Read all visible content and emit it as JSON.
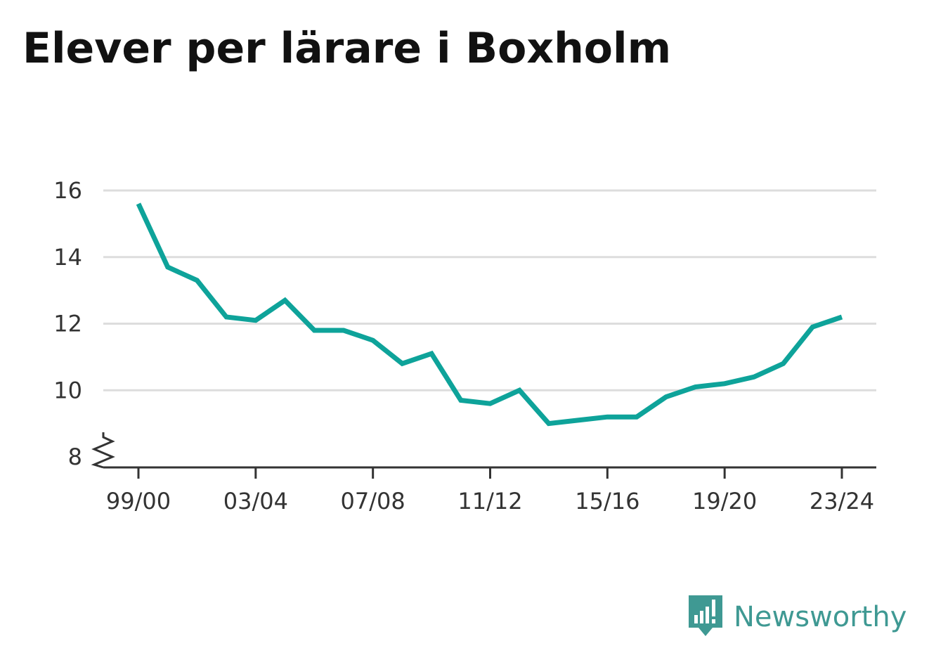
{
  "title": "Elever per lärare i Boxholm",
  "brand": {
    "name": "Newsworthy",
    "icon": "newsworthy-logo-icon",
    "color": "#3f9993"
  },
  "chart_data": {
    "type": "line",
    "title": "Elever per lärare i Boxholm",
    "xlabel": "",
    "ylabel": "",
    "x": [
      "99/00",
      "00/01",
      "01/02",
      "02/03",
      "03/04",
      "04/05",
      "05/06",
      "06/07",
      "07/08",
      "08/09",
      "09/10",
      "10/11",
      "11/12",
      "12/13",
      "13/14",
      "14/15",
      "15/16",
      "16/17",
      "17/18",
      "18/19",
      "19/20",
      "20/21",
      "21/22",
      "22/23",
      "23/24"
    ],
    "x_tick_labels": [
      "99/00",
      "03/04",
      "07/08",
      "11/12",
      "15/16",
      "19/20",
      "23/24"
    ],
    "y_ticks": [
      8,
      10,
      12,
      14,
      16
    ],
    "y_tick_labels": [
      "8",
      "10",
      "12",
      "14",
      "16"
    ],
    "ylim": [
      8,
      16
    ],
    "y_axis_break": true,
    "grid": true,
    "legend": "none",
    "series": [
      {
        "color": "#0ea39a",
        "values": [
          15.6,
          13.7,
          13.3,
          12.2,
          12.1,
          12.7,
          11.8,
          11.8,
          11.5,
          10.8,
          11.1,
          9.7,
          9.6,
          10.0,
          9.0,
          9.1,
          9.2,
          9.2,
          9.8,
          10.1,
          10.2,
          10.4,
          10.8,
          11.9,
          12.2
        ]
      }
    ]
  }
}
